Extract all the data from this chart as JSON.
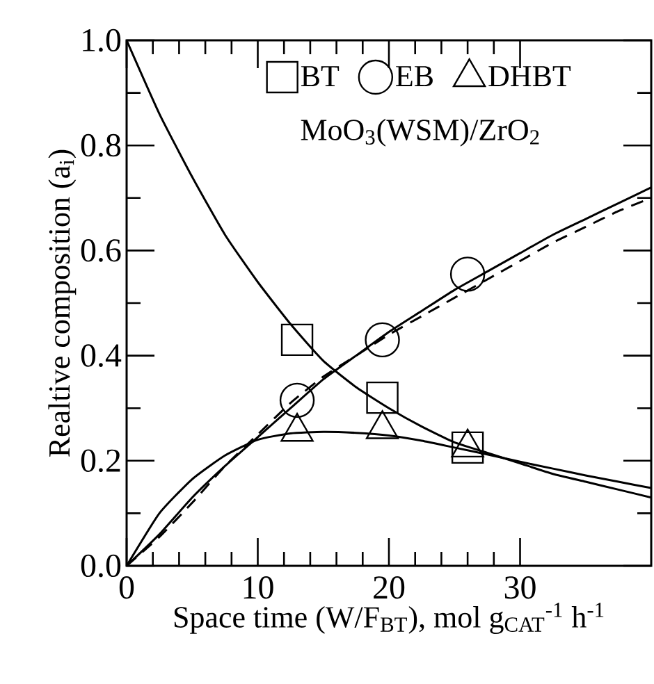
{
  "chart_data": {
    "type": "line",
    "xlabel": "Space time (W/F$_{BT}$), mol g$_{CAT}$$^{-1}$ h$^{-1}$",
    "ylabel": "Realtive composition (a$_{i}$)",
    "annotations": [
      "MoO$_{3}$(WSM)/ZrO$_{2}$"
    ],
    "xlim": [
      0,
      40
    ],
    "ylim": [
      0,
      1
    ],
    "xticks": [
      0,
      10,
      20,
      30
    ],
    "yticks": [
      {
        "value": 0,
        "label": "0.0"
      },
      {
        "value": 0.2,
        "label": "0.2"
      },
      {
        "value": 0.4,
        "label": "0.4"
      },
      {
        "value": 0.6,
        "label": "0.6"
      },
      {
        "value": 0.8,
        "label": "0.8"
      },
      {
        "value": 1,
        "label": "1.0"
      }
    ],
    "legend": "top",
    "grid": false,
    "series": [
      {
        "type": "scatter",
        "name": "BT",
        "marker": "square",
        "color": "#000000",
        "x": [
          13,
          19.5,
          26
        ],
        "values": [
          0.43,
          0.32,
          0.225
        ]
      },
      {
        "type": "scatter",
        "name": "EB",
        "marker": "circle",
        "color": "#000000",
        "x": [
          13,
          19.5,
          26
        ],
        "values": [
          0.315,
          0.43,
          0.555
        ]
      },
      {
        "type": "scatter",
        "name": "DHBT",
        "marker": "triangle",
        "color": "#000000",
        "x": [
          13,
          19.5,
          26
        ],
        "values": [
          0.255,
          0.26,
          0.225
        ]
      },
      {
        "line_style": "solid",
        "color": "#000000",
        "x": [
          0,
          2.5,
          5,
          7.5,
          10,
          12.5,
          15,
          17.5,
          20,
          22.5,
          25,
          27.5,
          30,
          32.5,
          35,
          37.5,
          40
        ],
        "values": [
          1.0,
          0.86,
          0.74,
          0.63,
          0.54,
          0.46,
          0.39,
          0.34,
          0.3,
          0.265,
          0.235,
          0.215,
          0.195,
          0.175,
          0.16,
          0.145,
          0.13
        ]
      },
      {
        "line_style": "solid",
        "color": "#000000",
        "x": [
          0,
          2.5,
          5,
          7.5,
          10,
          12.5,
          15,
          17.5,
          20,
          22.5,
          25,
          27.5,
          30,
          32.5,
          35,
          37.5,
          40
        ],
        "values": [
          0,
          0.06,
          0.13,
          0.19,
          0.245,
          0.3,
          0.355,
          0.4,
          0.445,
          0.485,
          0.525,
          0.56,
          0.595,
          0.63,
          0.66,
          0.69,
          0.72
        ]
      },
      {
        "line_style": "dashed",
        "color": "#000000",
        "x": [
          0,
          2.5,
          5,
          7.5,
          10,
          12.5,
          15,
          17.5,
          20,
          22.5,
          25,
          27.5,
          30,
          32.5,
          35,
          37.5,
          40
        ],
        "values": [
          0,
          0.055,
          0.12,
          0.19,
          0.25,
          0.31,
          0.36,
          0.4,
          0.44,
          0.475,
          0.51,
          0.545,
          0.58,
          0.615,
          0.645,
          0.675,
          0.7
        ]
      },
      {
        "line_style": "solid",
        "color": "#000000",
        "x": [
          0,
          2.5,
          5,
          7.5,
          10,
          12.5,
          15,
          17.5,
          20,
          22.5,
          25,
          27.5,
          30,
          32.5,
          35,
          37.5,
          40
        ],
        "values": [
          0,
          0.1,
          0.165,
          0.21,
          0.24,
          0.252,
          0.255,
          0.253,
          0.248,
          0.238,
          0.225,
          0.212,
          0.198,
          0.185,
          0.172,
          0.16,
          0.148
        ]
      }
    ]
  }
}
